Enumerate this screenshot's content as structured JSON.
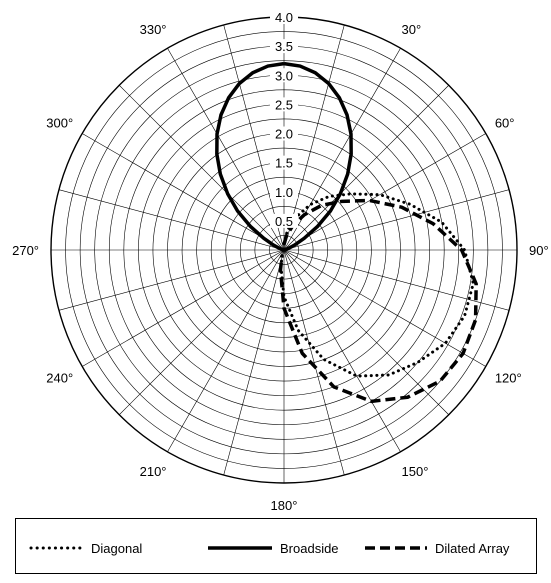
{
  "chart_data": {
    "type": "polar-line",
    "r_ticks": [
      0.5,
      1.0,
      1.5,
      2.0,
      2.5,
      3.0,
      3.5,
      4.0
    ],
    "r_tick_labels": [
      "0.5",
      "1.0",
      "1.5",
      "2.0",
      "2.5",
      "3.0",
      "3.5",
      "4.0"
    ],
    "r_max": 4.0,
    "angle_ticks": [
      0,
      30,
      60,
      90,
      120,
      150,
      180,
      210,
      240,
      270,
      300,
      330
    ],
    "angle_labels": [
      "",
      "30°",
      "60°",
      "90°",
      "120°",
      "150°",
      "180°",
      "210°",
      "240°",
      "270°",
      "300°",
      "330°"
    ],
    "angle_direction": "clockwise",
    "zero_location": "top",
    "grid": true,
    "legend_position": "bottom",
    "series": [
      {
        "name": "Diagonal",
        "style": "dotted",
        "color": "#000000",
        "theta": [
          0,
          10,
          20,
          30,
          40,
          50,
          60,
          70,
          80,
          90,
          100,
          110,
          120,
          130,
          140,
          150,
          160,
          170,
          180,
          190,
          200
        ],
        "r": [
          0.1,
          0.35,
          0.6,
          0.9,
          1.2,
          1.5,
          1.9,
          2.3,
          2.75,
          3.1,
          3.3,
          3.3,
          3.2,
          3.0,
          2.8,
          2.5,
          2.0,
          1.4,
          0.8,
          0.3,
          0.1
        ]
      },
      {
        "name": "Broadside",
        "style": "solid",
        "color": "#000000",
        "theta": [
          0,
          5,
          10,
          15,
          20,
          25,
          30,
          35,
          40,
          45,
          50,
          55,
          60,
          65,
          70,
          75,
          80,
          85,
          90,
          270,
          275,
          280,
          285,
          290,
          295,
          300,
          305,
          310,
          315,
          320,
          325,
          330,
          335,
          340,
          345,
          350,
          355,
          360
        ],
        "r": [
          3.2,
          3.17,
          3.09,
          2.96,
          2.78,
          2.56,
          2.3,
          2.01,
          1.7,
          1.37,
          1.04,
          0.7,
          0.4,
          0.2,
          0.08,
          0.03,
          0.01,
          0.0,
          0.0,
          0.0,
          0.0,
          0.01,
          0.03,
          0.08,
          0.2,
          0.4,
          0.7,
          1.04,
          1.37,
          1.7,
          2.01,
          2.3,
          2.56,
          2.78,
          2.96,
          3.09,
          3.17,
          3.2
        ]
      },
      {
        "name": "Dilated Array",
        "style": "dashed",
        "color": "#000000",
        "theta": [
          0,
          10,
          20,
          30,
          40,
          50,
          60,
          70,
          80,
          90,
          100,
          110,
          120,
          130,
          140,
          150,
          160,
          170,
          180,
          190,
          200
        ],
        "r": [
          0.1,
          0.25,
          0.45,
          0.7,
          1.0,
          1.3,
          1.7,
          2.15,
          2.6,
          3.05,
          3.35,
          3.5,
          3.55,
          3.5,
          3.3,
          3.0,
          2.5,
          1.8,
          1.0,
          0.35,
          0.1
        ]
      }
    ]
  },
  "legend": {
    "items": [
      {
        "label": "Diagonal"
      },
      {
        "label": "Broadside"
      },
      {
        "label": "Dilated Array"
      }
    ]
  }
}
